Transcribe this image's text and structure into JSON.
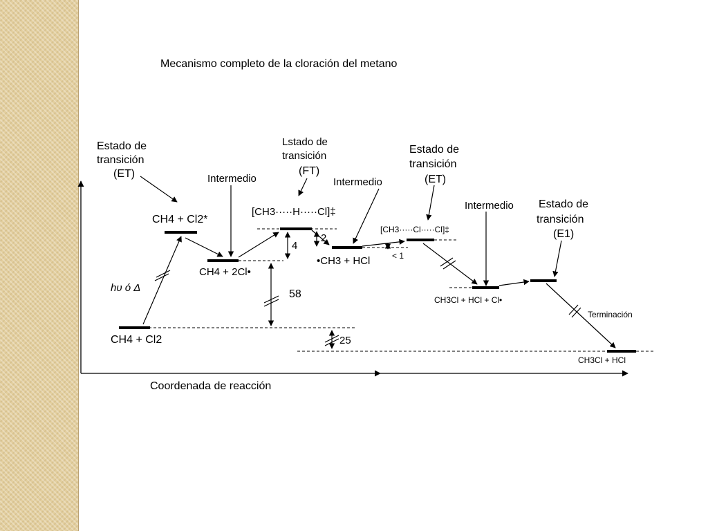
{
  "title": "Mecanismo completo de la cloración del metano",
  "diagram": {
    "axis_label": "Coordenada de reacción",
    "ts1": {
      "line1": "Estado de",
      "line2": "transición",
      "line3": "(ET)"
    },
    "ts2": {
      "line1": "Lstado de",
      "line2": "transición",
      "line3": "(FT)"
    },
    "ts3": {
      "line1": "Estado de",
      "line2": "transición",
      "line3": "(ET)"
    },
    "ts4": {
      "line1": "Estado de",
      "line2": "transición",
      "line3": "(E1)"
    },
    "intermediate1": "Intermedio",
    "intermediate2": "Intermedio",
    "intermediate3": "Intermedio",
    "species": {
      "reactants": "CH4 + Cl2",
      "excited": "CH4 + Cl2*",
      "int1": "CH4 + 2Cl•",
      "ts2_complex": "[CH3·····H·····Cl]‡",
      "int2": "•CH3 + HCl",
      "ts3_complex": "[CH3·····Cl·····Cl]‡",
      "int3": "CH3Cl + HCl + Cl•",
      "products": "CH3Cl + HCl"
    },
    "activation": "hυ ó Δ",
    "termination": "Terminación",
    "values": {
      "v4": "4",
      "v2": "2",
      "v58": "58",
      "v25": "25",
      "vlt1": "< 1"
    }
  }
}
